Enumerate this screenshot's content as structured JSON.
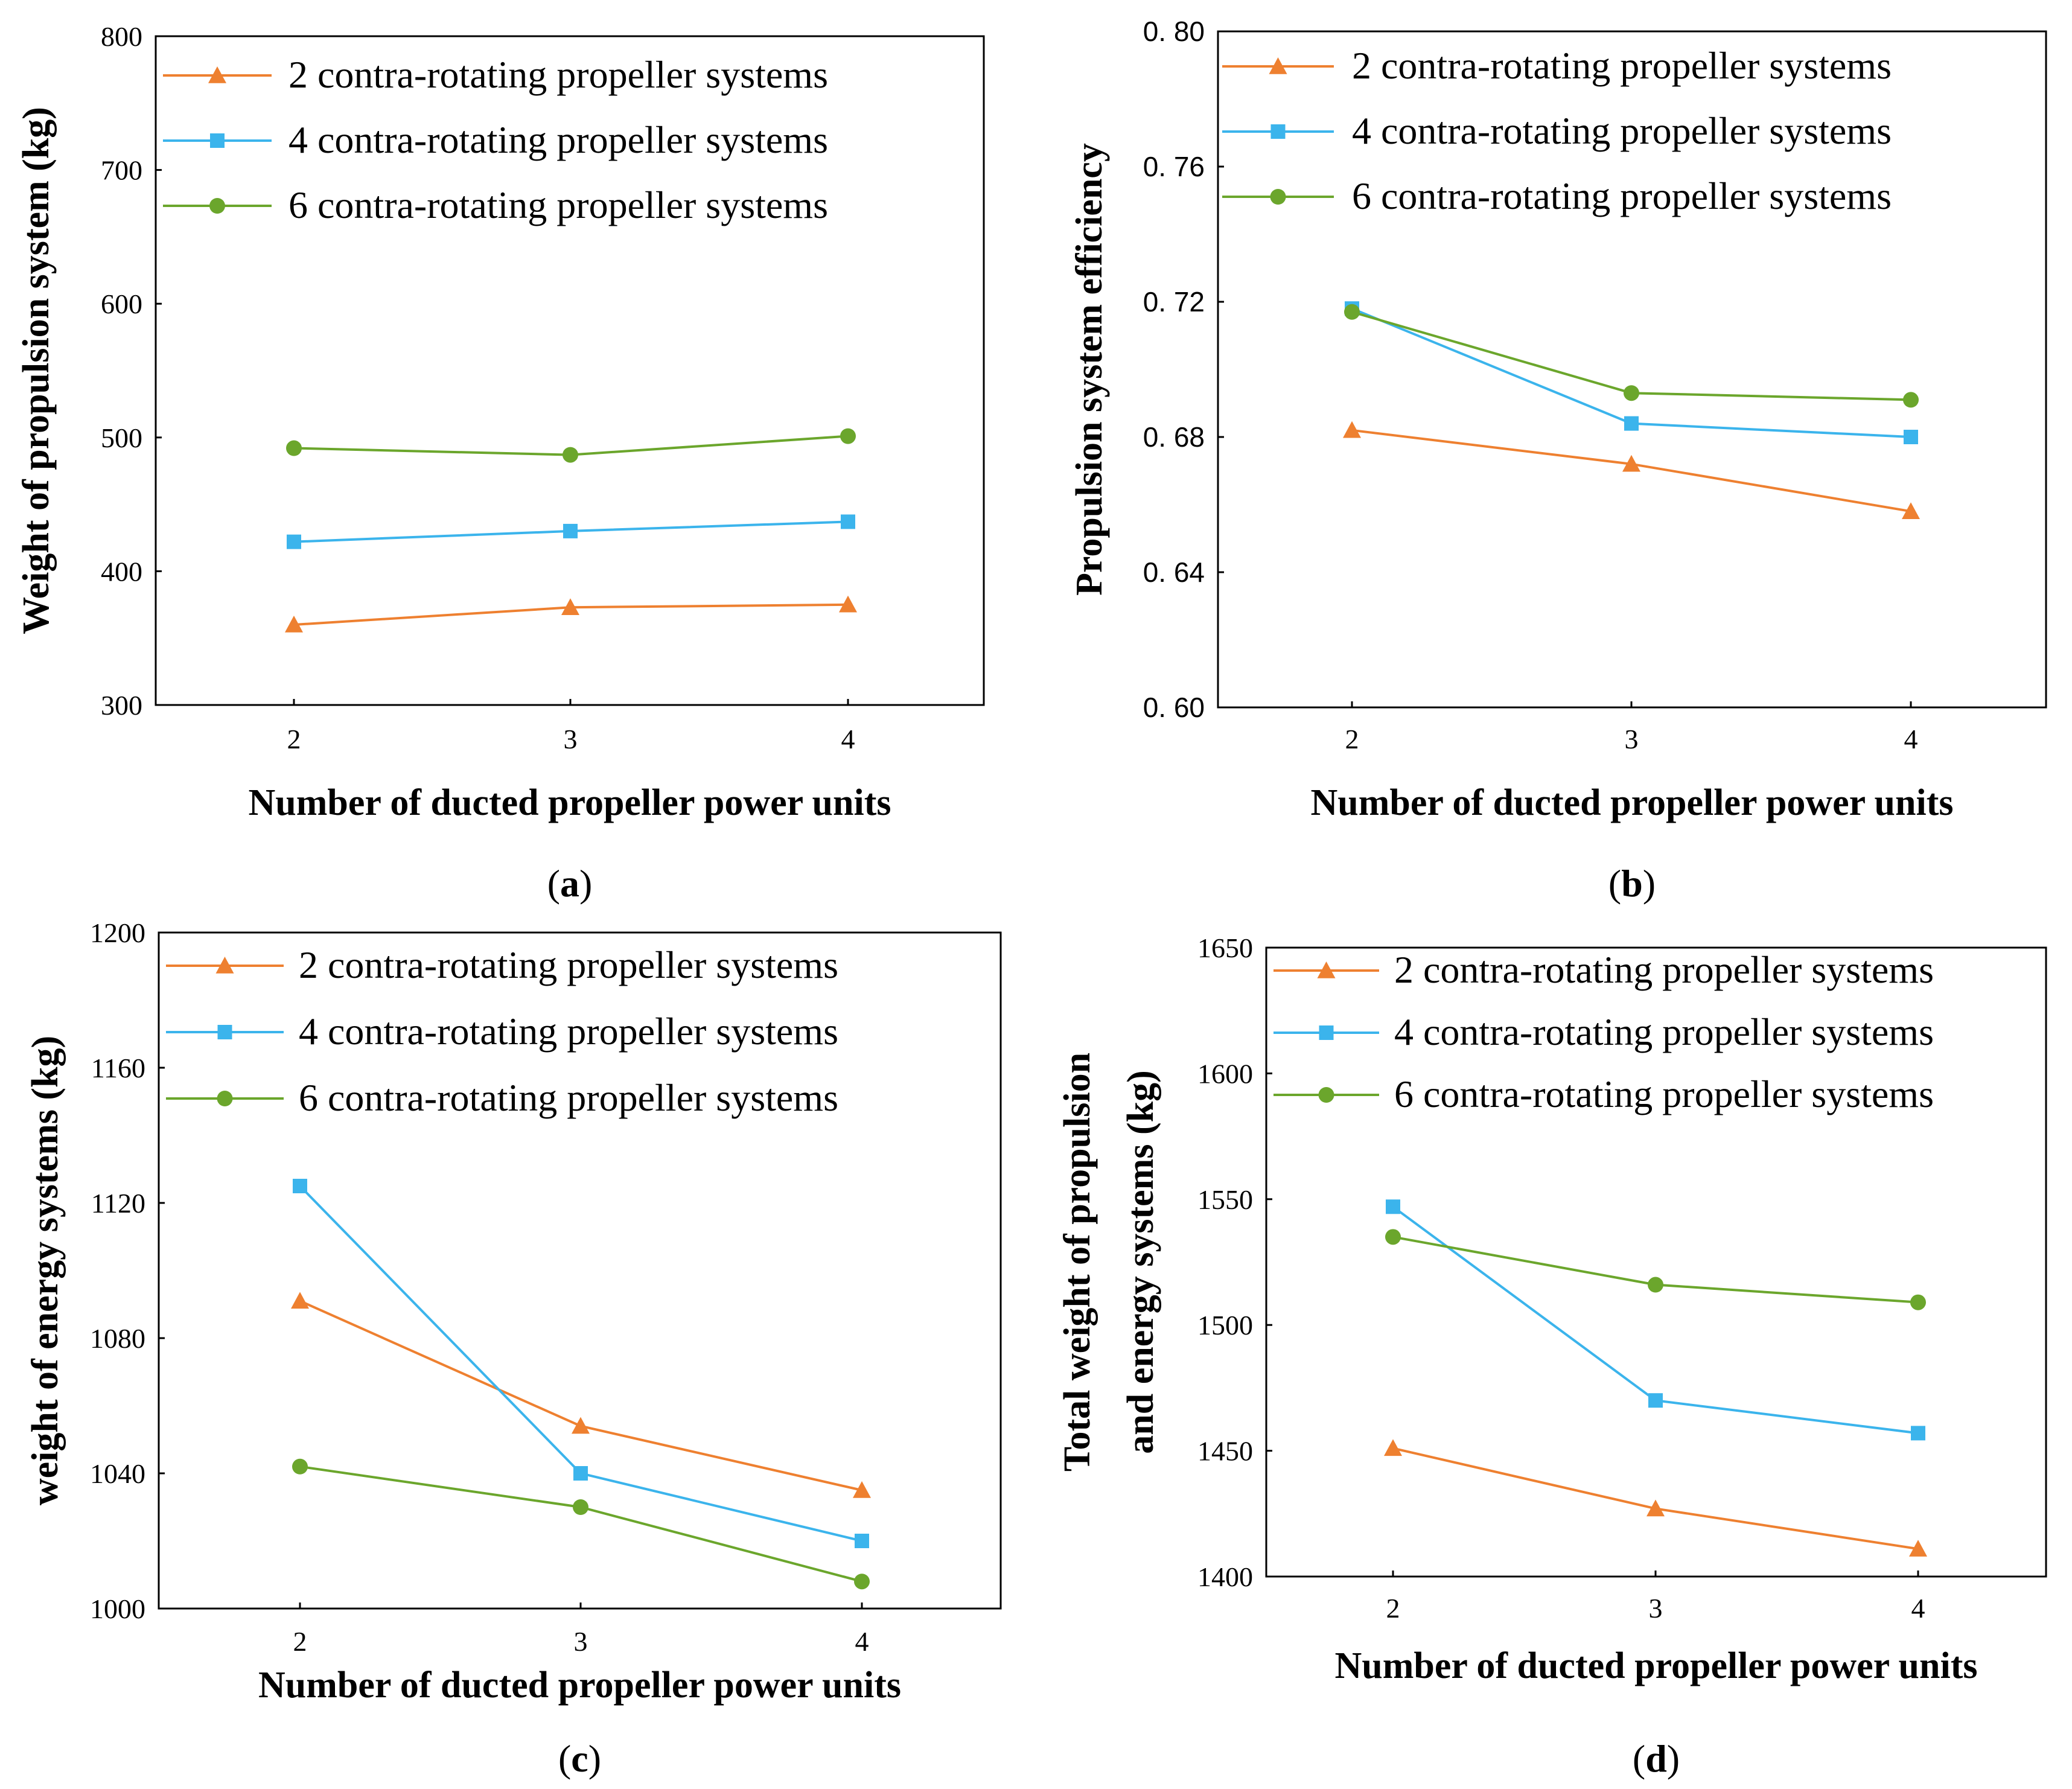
{
  "colors": {
    "s2": "#EE8030",
    "s4": "#3BB4EC",
    "s6": "#6BA62C"
  },
  "chart_data": [
    {
      "type": "line",
      "caption": {
        "open": "(",
        "letter": "a",
        "close": ")"
      },
      "xlabel": "Number of ducted propeller power units",
      "ylabel": "Weight of propulsion system (kg)",
      "categories": [
        "2",
        "3",
        "4"
      ],
      "ylim": [
        300,
        800
      ],
      "yticks": [
        "300",
        "400",
        "500",
        "600",
        "700",
        "800"
      ],
      "legend_position": "top-right",
      "series": [
        {
          "name": "2 contra-rotating propeller systems",
          "marker": "triangle",
          "values": [
            360,
            373,
            375
          ]
        },
        {
          "name": "4 contra-rotating propeller systems",
          "marker": "square",
          "values": [
            422,
            430,
            437
          ]
        },
        {
          "name": "6 contra-rotating propeller systems",
          "marker": "circle",
          "values": [
            492,
            487,
            501
          ]
        }
      ]
    },
    {
      "type": "line",
      "caption": {
        "open": "(",
        "letter": "b",
        "close": ")"
      },
      "xlabel": "Number of ducted propeller power units",
      "ylabel": "Propulsion system efficiency",
      "categories": [
        "2",
        "3",
        "4"
      ],
      "ylim": [
        0.6,
        0.8
      ],
      "yticks": [
        "0. 60",
        "0. 64",
        "0. 68",
        "0. 72",
        "0. 76",
        "0. 80"
      ],
      "legend_position": "top-right",
      "series": [
        {
          "name": "2 contra-rotating propeller systems",
          "marker": "triangle",
          "values": [
            0.682,
            0.672,
            0.658
          ]
        },
        {
          "name": "4 contra-rotating propeller systems",
          "marker": "square",
          "values": [
            0.718,
            0.684,
            0.68
          ]
        },
        {
          "name": "6 contra-rotating propeller systems",
          "marker": "circle",
          "values": [
            0.717,
            0.693,
            0.691
          ]
        }
      ]
    },
    {
      "type": "line",
      "caption": {
        "open": "(",
        "letter": "c",
        "close": ")"
      },
      "xlabel": "Number of ducted propeller power units",
      "ylabel": "weight of energy systems (kg)",
      "categories": [
        "2",
        "3",
        "4"
      ],
      "ylim": [
        1000,
        1200
      ],
      "yticks": [
        "1000",
        "1040",
        "1080",
        "1120",
        "1160",
        "1200"
      ],
      "legend_position": "top-right",
      "series": [
        {
          "name": "2 contra-rotating propeller systems",
          "marker": "triangle",
          "values": [
            1091,
            1054,
            1035
          ]
        },
        {
          "name": "4 contra-rotating propeller systems",
          "marker": "square",
          "values": [
            1125,
            1040,
            1020
          ]
        },
        {
          "name": "6 contra-rotating propeller systems",
          "marker": "circle",
          "values": [
            1042,
            1030,
            1008
          ]
        }
      ]
    },
    {
      "type": "line",
      "caption": {
        "open": "(",
        "letter": "d",
        "close": ")"
      },
      "xlabel": "Number of ducted propeller power units",
      "ylabel": [
        "Total weight of propulsion",
        "and energy systems (kg)"
      ],
      "categories": [
        "2",
        "3",
        "4"
      ],
      "ylim": [
        1400,
        1650
      ],
      "yticks": [
        "1400",
        "1450",
        "1500",
        "1550",
        "1600",
        "1650"
      ],
      "legend_position": "top-right",
      "series": [
        {
          "name": "2 contra-rotating propeller systems",
          "marker": "triangle",
          "values": [
            1451,
            1427,
            1411
          ]
        },
        {
          "name": "4 contra-rotating propeller systems",
          "marker": "square",
          "values": [
            1547,
            1470,
            1457
          ]
        },
        {
          "name": "6 contra-rotating propeller systems",
          "marker": "circle",
          "values": [
            1535,
            1516,
            1509
          ]
        }
      ]
    }
  ]
}
